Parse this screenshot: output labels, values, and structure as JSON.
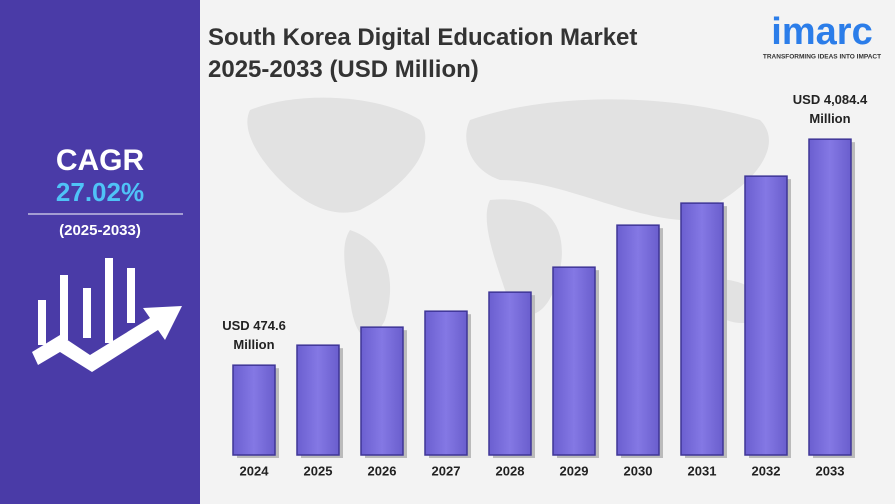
{
  "chart_data": {
    "type": "bar",
    "title": "South Korea Digital Education Market 2025-2033 (USD Million)",
    "categories": [
      "2024",
      "2025",
      "2026",
      "2027",
      "2028",
      "2029",
      "2030",
      "2031",
      "2032",
      "2033"
    ],
    "values": [
      474.6,
      794,
      1082,
      1337,
      1641,
      2040,
      2711,
      3063,
      3494,
      4084.4
    ],
    "value_labels": [
      "USD 474.6 Million",
      null,
      null,
      null,
      null,
      null,
      null,
      null,
      null,
      "USD 4,084.4 Million"
    ],
    "color": "#7b70dc",
    "ylim": [
      -960,
      4710
    ]
  },
  "sidebar": {
    "label": "CAGR",
    "value": "27.02%",
    "period": "(2025-2033)"
  },
  "logo": {
    "name": "imarc",
    "tagline": "TRANSFORMING IDEAS INTO IMPACT"
  }
}
